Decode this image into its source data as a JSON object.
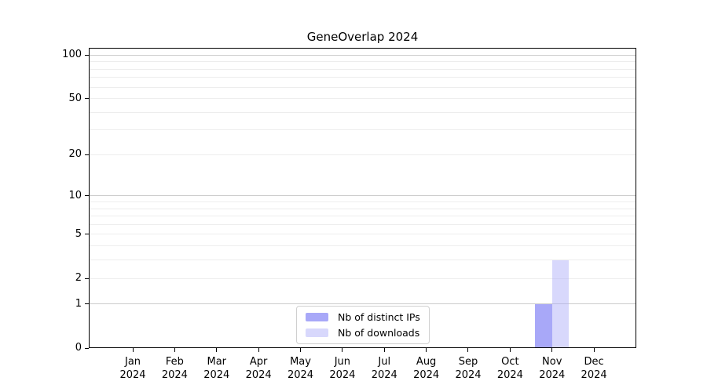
{
  "chart_data": {
    "type": "bar",
    "title": "GeneOverlap 2024",
    "x_tick_months": [
      "Jan",
      "Feb",
      "Mar",
      "Apr",
      "May",
      "Jun",
      "Jul",
      "Aug",
      "Sep",
      "Oct",
      "Nov",
      "Dec"
    ],
    "x_tick_year": "2024",
    "series": [
      {
        "name": "Nb of distinct IPs",
        "color": "#a8a8f8",
        "opacity": 1.0,
        "values": [
          0,
          0,
          0,
          0,
          0,
          0,
          0,
          0,
          0,
          0,
          1,
          0
        ]
      },
      {
        "name": "Nb of downloads",
        "color": "#a8a8f8",
        "opacity": 0.45,
        "values": [
          0,
          0,
          0,
          0,
          0,
          0,
          0,
          0,
          0,
          0,
          3,
          0
        ]
      }
    ],
    "y_axis": {
      "scale": "log1p",
      "tick_values": [
        0,
        1,
        2,
        5,
        10,
        20,
        50,
        100
      ],
      "range": [
        0,
        112
      ]
    },
    "gridlines": {
      "major_values": [
        1,
        10,
        100
      ],
      "minor_values": [
        2,
        3,
        4,
        5,
        6,
        7,
        8,
        9,
        20,
        30,
        40,
        50,
        60,
        70,
        80,
        90
      ],
      "major_color": "#cccccc",
      "minor_color": "#ededed"
    },
    "legend": {
      "position": "lower center",
      "labels": [
        "Nb of distinct IPs",
        "Nb of downloads"
      ]
    }
  }
}
